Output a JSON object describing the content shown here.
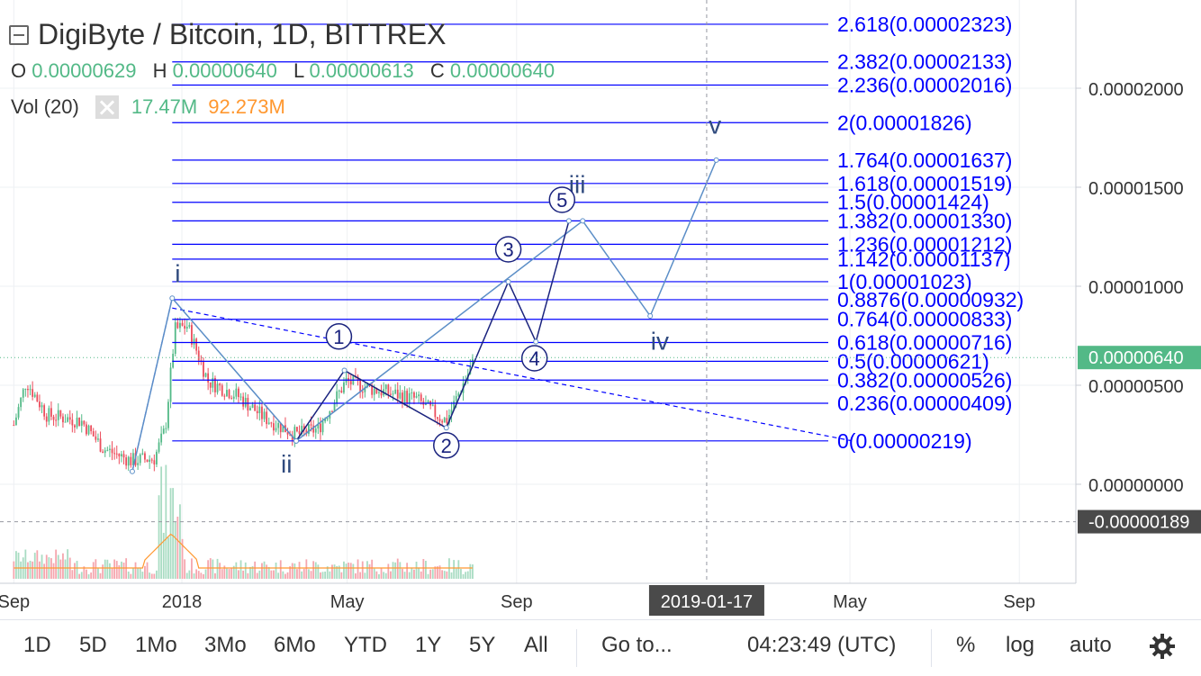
{
  "legend": {
    "title": "DigiByte / Bitcoin, 1D, BITTREX",
    "o_label": "O",
    "o_value": "0.00000629",
    "h_label": "H",
    "h_value": "0.00000640",
    "l_label": "L",
    "l_value": "0.00000613",
    "c_label": "C",
    "c_value": "0.00000640",
    "vol_label": "Vol (20)",
    "vol_value": "17.47M",
    "vol_ma": "92.273M"
  },
  "toolbar": {
    "ranges": [
      "1D",
      "5D",
      "1Mo",
      "3Mo",
      "6Mo",
      "YTD",
      "1Y",
      "5Y",
      "All"
    ],
    "goto_label": "Go to...",
    "clock": "04:23:49 (UTC)",
    "percent_label": "%",
    "log_label": "log",
    "auto_label": "auto",
    "settings_icon": "gear-icon"
  },
  "chart_data": {
    "type": "candlestick",
    "x_tick_labels": [
      "Sep",
      "2018",
      "May",
      "Sep",
      "May",
      "Sep"
    ],
    "x_tick_dates": [
      "2017-09-01",
      "2018-01-01",
      "2018-05-01",
      "2018-09-01",
      "2019-05-01",
      "2019-09-01"
    ],
    "crosshair_date": "2019-01-17",
    "y_tick_labels": [
      "0.00002000",
      "0.00001500",
      "0.00001000",
      "0.00000500",
      "0.00000000"
    ],
    "y_ticks": [
      2e-05,
      1.5e-05,
      1e-05,
      5e-06,
      0
    ],
    "current_price_label": "0.00000640",
    "current_price": 6.4e-06,
    "crosshair_price_label": "-0.00000189",
    "crosshair_price": -1.89e-06,
    "fib_levels": [
      {
        "label": "2.618(0.00002323)",
        "value": 2.323e-05
      },
      {
        "label": "2.382(0.00002133)",
        "value": 2.133e-05
      },
      {
        "label": "2.236(0.00002016)",
        "value": 2.016e-05
      },
      {
        "label": "2(0.00001826)",
        "value": 1.826e-05
      },
      {
        "label": "1.764(0.00001637)",
        "value": 1.637e-05
      },
      {
        "label": "1.618(0.00001519)",
        "value": 1.519e-05
      },
      {
        "label": "1.5(0.00001424)",
        "value": 1.424e-05
      },
      {
        "label": "1.382(0.00001330)",
        "value": 1.33e-05
      },
      {
        "label": "1.236(0.00001212)",
        "value": 1.212e-05
      },
      {
        "label": "1.142(0.00001137)",
        "value": 1.137e-05
      },
      {
        "label": "1(0.00001023)",
        "value": 1.023e-05
      },
      {
        "label": "0.8876(0.00000932)",
        "value": 9.32e-06
      },
      {
        "label": "0.764(0.00000833)",
        "value": 8.33e-06
      },
      {
        "label": "0.618(0.00000716)",
        "value": 7.16e-06
      },
      {
        "label": "0.5(0.00000621)",
        "value": 6.21e-06
      },
      {
        "label": "0.382(0.00000526)",
        "value": 5.26e-06
      },
      {
        "label": "0.236(0.00000409)",
        "value": 4.09e-06
      },
      {
        "label": "0(0.00000219)",
        "value": 2.19e-06
      }
    ],
    "wave_labels": [
      {
        "label": "i",
        "date": "2017-12-29",
        "value": 1.02e-05,
        "circled": false
      },
      {
        "label": "ii",
        "date": "2018-03-18",
        "value": 6e-07,
        "circled": false
      },
      {
        "label": "iii",
        "date": "2018-10-15",
        "value": 1.47e-05,
        "circled": false
      },
      {
        "label": "iv",
        "date": "2018-12-14",
        "value": 6.8e-06,
        "circled": false
      },
      {
        "label": "v",
        "date": "2019-01-23",
        "value": 1.77e-05,
        "circled": false
      },
      {
        "label": "1",
        "date": "2018-04-25",
        "value": 7.1e-06,
        "circled": true
      },
      {
        "label": "2",
        "date": "2018-07-12",
        "value": 1.6e-06,
        "circled": true
      },
      {
        "label": "3",
        "date": "2018-08-26",
        "value": 1.15e-05,
        "circled": true
      },
      {
        "label": "4",
        "date": "2018-09-14",
        "value": 6e-06,
        "circled": true
      },
      {
        "label": "5",
        "date": "2018-10-04",
        "value": 1.4e-05,
        "circled": true
      }
    ],
    "subwave_path": [
      {
        "date": "2018-03-25",
        "value": 2.19e-06
      },
      {
        "date": "2018-04-29",
        "value": 5.75e-06
      },
      {
        "date": "2018-07-12",
        "value": 2.85e-06
      },
      {
        "date": "2018-08-26",
        "value": 1.023e-05
      },
      {
        "date": "2018-09-15",
        "value": 7.2e-06
      },
      {
        "date": "2018-10-09",
        "value": 1.33e-05
      }
    ],
    "primary_wave_path": [
      {
        "date": "2017-11-26",
        "value": 6.5e-07
      },
      {
        "date": "2017-12-25",
        "value": 9.4e-06
      },
      {
        "date": "2018-03-25",
        "value": 2.19e-06
      },
      {
        "date": "2018-10-19",
        "value": 1.33e-05
      },
      {
        "date": "2018-12-07",
        "value": 8.5e-06
      },
      {
        "date": "2019-01-24",
        "value": 1.637e-05
      }
    ],
    "trendline_dashed": [
      {
        "date": "2017-12-25",
        "value": 8.9e-06
      },
      {
        "date": "2019-05-02",
        "value": 2.2e-06
      }
    ],
    "precursor_dashed": [
      {
        "date": "2017-11-26",
        "value": 6.5e-07
      },
      {
        "date": "2017-12-25",
        "value": 9.4e-06
      }
    ],
    "colors": {
      "up": "#53b987",
      "down": "#eb4d5c",
      "fib": "#0000ff",
      "wave": "#5b8ec7",
      "subwave": "#1a237e",
      "label": "#2f4a7e",
      "ma": "#ff9830",
      "price_tag": "#53b987",
      "crosshair_tag": "#4a4a4a"
    }
  }
}
